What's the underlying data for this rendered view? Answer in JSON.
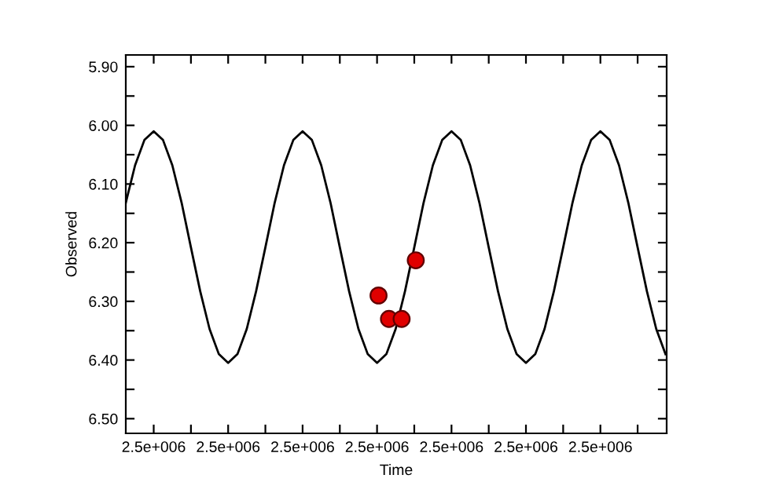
{
  "chart_data": {
    "type": "line",
    "xlabel": "Time",
    "ylabel": "Observed",
    "xlim": [
      2453962.5,
      2454689
    ],
    "ylim": [
      6.525,
      5.88
    ],
    "xticks": [
      {
        "value": 2454000,
        "label": "2.5e+006"
      },
      {
        "value": 2454050,
        "label": null
      },
      {
        "value": 2454100,
        "label": "2.5e+006"
      },
      {
        "value": 2454150,
        "label": null
      },
      {
        "value": 2454200,
        "label": "2.5e+006"
      },
      {
        "value": 2454250,
        "label": null
      },
      {
        "value": 2454300,
        "label": "2.5e+006"
      },
      {
        "value": 2454350,
        "label": null
      },
      {
        "value": 2454400,
        "label": "2.5e+006"
      },
      {
        "value": 2454450,
        "label": null
      },
      {
        "value": 2454500,
        "label": "2.5e+006"
      },
      {
        "value": 2454550,
        "label": null
      },
      {
        "value": 2454600,
        "label": "2.5e+006"
      },
      {
        "value": 2454650,
        "label": null
      }
    ],
    "yticks": [
      {
        "value": 5.9,
        "label": "5.90"
      },
      {
        "value": 5.95,
        "label": null
      },
      {
        "value": 6.0,
        "label": "6.00"
      },
      {
        "value": 6.05,
        "label": null
      },
      {
        "value": 6.1,
        "label": "6.10"
      },
      {
        "value": 6.15,
        "label": null
      },
      {
        "value": 6.2,
        "label": "6.20"
      },
      {
        "value": 6.25,
        "label": null
      },
      {
        "value": 6.3,
        "label": "6.30"
      },
      {
        "value": 6.35,
        "label": null
      },
      {
        "value": 6.4,
        "label": "6.40"
      },
      {
        "value": 6.45,
        "label": null
      },
      {
        "value": 6.5,
        "label": "6.50"
      }
    ],
    "grid": false,
    "legend": false,
    "series": [
      {
        "color": "#000000",
        "marker": "none",
        "line_style": "solid",
        "x": [
          2453962.5,
          2453975,
          2453987.5,
          2454000,
          2454012.5,
          2454025,
          2454037.5,
          2454050,
          2454062.5,
          2454075,
          2454087.5,
          2454100,
          2454112.5,
          2454125,
          2454137.5,
          2454150,
          2454162.5,
          2454175,
          2454187.5,
          2454200,
          2454212.5,
          2454225,
          2454237.5,
          2454250,
          2454262.5,
          2454275,
          2454287.5,
          2454300,
          2454312.5,
          2454325,
          2454337.5,
          2454350,
          2454362.5,
          2454375,
          2454387.5,
          2454400,
          2454412.5,
          2454425,
          2454437.5,
          2454450,
          2454462.5,
          2454475,
          2454487.5,
          2454500,
          2454512.5,
          2454525,
          2454537.5,
          2454550,
          2454562.5,
          2454575,
          2454587.5,
          2454600,
          2454612.5,
          2454625,
          2454637.5,
          2454650,
          2454662.5,
          2454675,
          2454687.5
        ],
        "values": [
          6.132,
          6.068,
          6.025,
          6.01,
          6.025,
          6.068,
          6.132,
          6.208,
          6.283,
          6.347,
          6.39,
          6.405,
          6.39,
          6.347,
          6.283,
          6.208,
          6.132,
          6.068,
          6.025,
          6.01,
          6.025,
          6.068,
          6.132,
          6.208,
          6.283,
          6.347,
          6.39,
          6.405,
          6.39,
          6.347,
          6.283,
          6.208,
          6.132,
          6.068,
          6.025,
          6.01,
          6.025,
          6.068,
          6.132,
          6.208,
          6.283,
          6.347,
          6.39,
          6.405,
          6.39,
          6.347,
          6.283,
          6.208,
          6.132,
          6.068,
          6.025,
          6.01,
          6.025,
          6.068,
          6.132,
          6.208,
          6.283,
          6.347,
          6.39
        ]
      },
      {
        "type": "scatter",
        "color": "#e00000",
        "marker": "circle",
        "x": [
          2454302,
          2454316,
          2454333,
          2454352
        ],
        "values": [
          6.29,
          6.33,
          6.33,
          6.23
        ]
      }
    ]
  }
}
